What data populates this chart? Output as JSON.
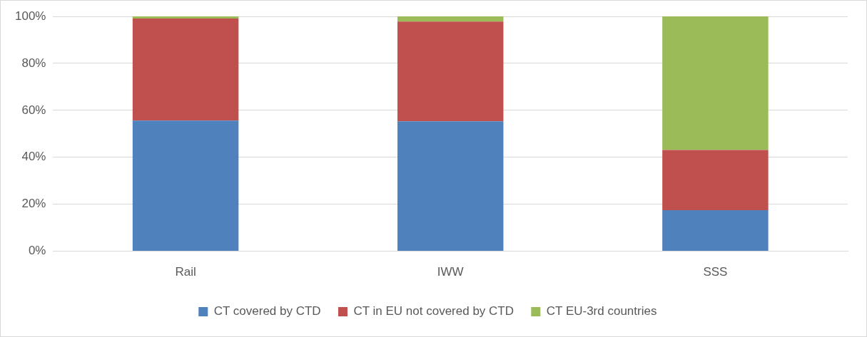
{
  "chart_data": {
    "type": "bar",
    "stacked": true,
    "categories": [
      "Rail",
      "IWW",
      "SSS"
    ],
    "series": [
      {
        "name": "CT covered by CTD",
        "color": "#4f81bd",
        "values": [
          55.6,
          55.3,
          17.5
        ]
      },
      {
        "name": "CT in EU not covered by CTD",
        "color": "#c0504d",
        "values": [
          43.5,
          42.5,
          25.6
        ]
      },
      {
        "name": "CT EU-3rd countries",
        "color": "#9bbb59",
        "values": [
          0.9,
          2.2,
          56.9
        ]
      }
    ],
    "ylim": [
      0,
      100
    ],
    "yticks": [
      {
        "value": 0,
        "label": "0%"
      },
      {
        "value": 20,
        "label": "20%"
      },
      {
        "value": 40,
        "label": "40%"
      },
      {
        "value": 60,
        "label": "60%"
      },
      {
        "value": 80,
        "label": "80%"
      },
      {
        "value": 100,
        "label": "100%"
      }
    ],
    "grid": "y",
    "legend": "bottom"
  }
}
